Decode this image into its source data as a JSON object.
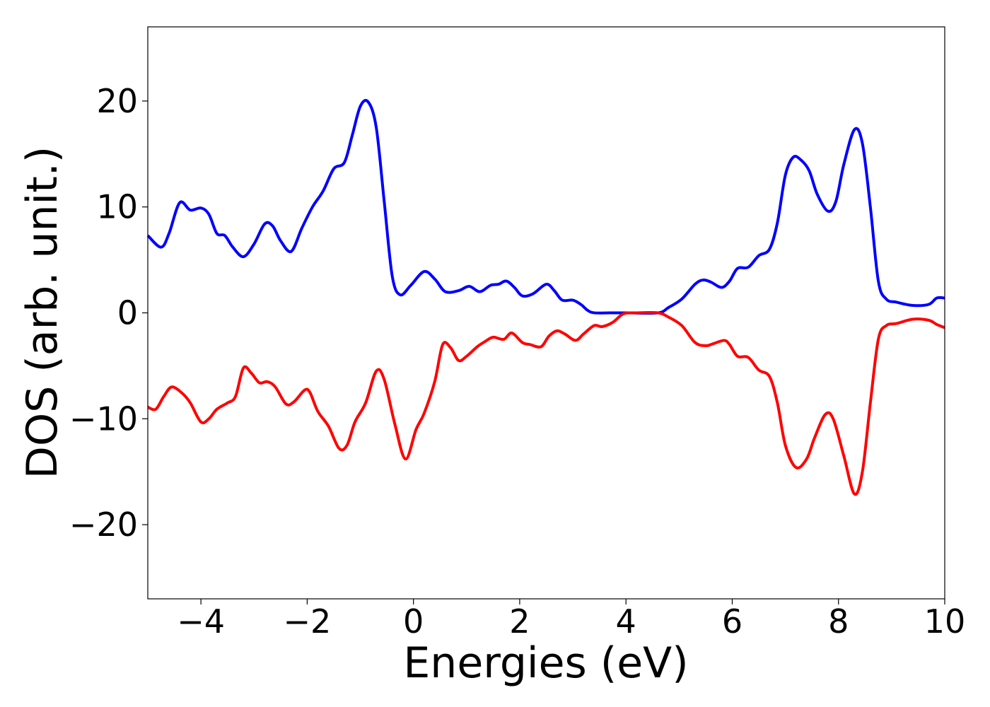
{
  "chart_data": {
    "type": "line",
    "title": "",
    "xlabel": "Energies (eV)",
    "ylabel": "DOS (arb. unit.)",
    "xlim": [
      -5,
      10
    ],
    "ylim": [
      -27,
      27
    ],
    "x_ticks": [
      -4,
      -2,
      0,
      2,
      4,
      6,
      8,
      10
    ],
    "x_tick_labels": [
      "−4",
      "−2",
      "0",
      "2",
      "4",
      "6",
      "8",
      "10"
    ],
    "y_ticks": [
      -20,
      -10,
      0,
      10,
      20
    ],
    "y_tick_labels": [
      "−20",
      "−10",
      "0",
      "10",
      "20"
    ],
    "grid": false,
    "legend": "none",
    "series": [
      {
        "color": "#0000ff",
        "points": [
          [
            -5.0,
            7.3
          ],
          [
            -4.75,
            6.2
          ],
          [
            -4.6,
            7.5
          ],
          [
            -4.4,
            10.4
          ],
          [
            -4.2,
            9.7
          ],
          [
            -4.0,
            9.9
          ],
          [
            -3.85,
            9.3
          ],
          [
            -3.7,
            7.5
          ],
          [
            -3.55,
            7.3
          ],
          [
            -3.4,
            6.2
          ],
          [
            -3.2,
            5.3
          ],
          [
            -3.0,
            6.5
          ],
          [
            -2.8,
            8.4
          ],
          [
            -2.65,
            8.2
          ],
          [
            -2.5,
            6.8
          ],
          [
            -2.3,
            5.8
          ],
          [
            -2.1,
            8.0
          ],
          [
            -1.9,
            10.0
          ],
          [
            -1.7,
            11.5
          ],
          [
            -1.5,
            13.6
          ],
          [
            -1.3,
            14.2
          ],
          [
            -1.15,
            16.8
          ],
          [
            -1.0,
            19.5
          ],
          [
            -0.85,
            19.9
          ],
          [
            -0.7,
            17.5
          ],
          [
            -0.55,
            10.5
          ],
          [
            -0.4,
            3.5
          ],
          [
            -0.25,
            1.7
          ],
          [
            -0.05,
            2.6
          ],
          [
            0.2,
            3.9
          ],
          [
            0.4,
            3.2
          ],
          [
            0.6,
            2.0
          ],
          [
            0.85,
            2.1
          ],
          [
            1.05,
            2.5
          ],
          [
            1.25,
            2.0
          ],
          [
            1.45,
            2.6
          ],
          [
            1.6,
            2.7
          ],
          [
            1.75,
            3.0
          ],
          [
            1.9,
            2.4
          ],
          [
            2.05,
            1.6
          ],
          [
            2.25,
            1.8
          ],
          [
            2.5,
            2.7
          ],
          [
            2.65,
            2.1
          ],
          [
            2.8,
            1.2
          ],
          [
            3.0,
            1.2
          ],
          [
            3.15,
            0.8
          ],
          [
            3.35,
            0.05
          ],
          [
            3.7,
            0.0
          ],
          [
            4.0,
            0.0
          ],
          [
            4.6,
            0.0
          ],
          [
            4.8,
            0.5
          ],
          [
            5.05,
            1.3
          ],
          [
            5.3,
            2.7
          ],
          [
            5.45,
            3.1
          ],
          [
            5.6,
            2.9
          ],
          [
            5.8,
            2.4
          ],
          [
            5.95,
            3.0
          ],
          [
            6.1,
            4.2
          ],
          [
            6.3,
            4.3
          ],
          [
            6.5,
            5.4
          ],
          [
            6.7,
            6.0
          ],
          [
            6.85,
            8.5
          ],
          [
            7.0,
            13.0
          ],
          [
            7.15,
            14.7
          ],
          [
            7.3,
            14.4
          ],
          [
            7.45,
            13.4
          ],
          [
            7.6,
            11.2
          ],
          [
            7.8,
            9.6
          ],
          [
            7.95,
            10.5
          ],
          [
            8.1,
            14.0
          ],
          [
            8.3,
            17.3
          ],
          [
            8.45,
            16.0
          ],
          [
            8.6,
            10.0
          ],
          [
            8.75,
            3.0
          ],
          [
            8.9,
            1.3
          ],
          [
            9.1,
            1.0
          ],
          [
            9.4,
            0.7
          ],
          [
            9.7,
            0.8
          ],
          [
            9.85,
            1.4
          ],
          [
            10.0,
            1.4
          ]
        ]
      },
      {
        "color": "#ff0000",
        "points": [
          [
            -5.0,
            -8.9
          ],
          [
            -4.85,
            -9.1
          ],
          [
            -4.7,
            -7.9
          ],
          [
            -4.55,
            -7.0
          ],
          [
            -4.35,
            -7.6
          ],
          [
            -4.2,
            -8.5
          ],
          [
            -4.0,
            -10.3
          ],
          [
            -3.85,
            -10.0
          ],
          [
            -3.7,
            -9.1
          ],
          [
            -3.5,
            -8.5
          ],
          [
            -3.35,
            -7.9
          ],
          [
            -3.2,
            -5.2
          ],
          [
            -3.05,
            -5.7
          ],
          [
            -2.9,
            -6.6
          ],
          [
            -2.75,
            -6.5
          ],
          [
            -2.6,
            -7.0
          ],
          [
            -2.4,
            -8.6
          ],
          [
            -2.25,
            -8.4
          ],
          [
            -2.05,
            -7.3
          ],
          [
            -1.95,
            -7.5
          ],
          [
            -1.8,
            -9.3
          ],
          [
            -1.6,
            -10.7
          ],
          [
            -1.4,
            -12.8
          ],
          [
            -1.25,
            -12.5
          ],
          [
            -1.1,
            -10.3
          ],
          [
            -0.9,
            -8.5
          ],
          [
            -0.7,
            -5.5
          ],
          [
            -0.55,
            -6.3
          ],
          [
            -0.35,
            -10.5
          ],
          [
            -0.15,
            -13.8
          ],
          [
            0.05,
            -11.0
          ],
          [
            0.2,
            -9.5
          ],
          [
            0.4,
            -6.5
          ],
          [
            0.55,
            -3.0
          ],
          [
            0.7,
            -3.3
          ],
          [
            0.85,
            -4.5
          ],
          [
            1.0,
            -4.1
          ],
          [
            1.2,
            -3.2
          ],
          [
            1.35,
            -2.7
          ],
          [
            1.5,
            -2.3
          ],
          [
            1.7,
            -2.5
          ],
          [
            1.85,
            -1.9
          ],
          [
            2.05,
            -2.8
          ],
          [
            2.2,
            -3.0
          ],
          [
            2.4,
            -3.2
          ],
          [
            2.55,
            -2.2
          ],
          [
            2.7,
            -1.7
          ],
          [
            2.85,
            -2.0
          ],
          [
            3.05,
            -2.6
          ],
          [
            3.2,
            -2.0
          ],
          [
            3.4,
            -1.2
          ],
          [
            3.55,
            -1.3
          ],
          [
            3.75,
            -0.9
          ],
          [
            3.95,
            -0.1
          ],
          [
            4.2,
            0.0
          ],
          [
            4.6,
            0.0
          ],
          [
            4.8,
            -0.4
          ],
          [
            5.05,
            -1.2
          ],
          [
            5.3,
            -2.8
          ],
          [
            5.5,
            -3.1
          ],
          [
            5.65,
            -2.9
          ],
          [
            5.85,
            -2.6
          ],
          [
            5.95,
            -3.0
          ],
          [
            6.1,
            -4.1
          ],
          [
            6.3,
            -4.2
          ],
          [
            6.5,
            -5.4
          ],
          [
            6.7,
            -6.0
          ],
          [
            6.85,
            -8.5
          ],
          [
            7.0,
            -12.5
          ],
          [
            7.2,
            -14.6
          ],
          [
            7.4,
            -13.8
          ],
          [
            7.55,
            -11.8
          ],
          [
            7.75,
            -9.6
          ],
          [
            7.9,
            -10.0
          ],
          [
            8.1,
            -13.5
          ],
          [
            8.3,
            -17.1
          ],
          [
            8.45,
            -15.0
          ],
          [
            8.6,
            -8.5
          ],
          [
            8.75,
            -2.5
          ],
          [
            8.9,
            -1.2
          ],
          [
            9.1,
            -1.0
          ],
          [
            9.4,
            -0.6
          ],
          [
            9.7,
            -0.7
          ],
          [
            9.85,
            -1.1
          ],
          [
            10.0,
            -1.4
          ]
        ]
      }
    ]
  }
}
